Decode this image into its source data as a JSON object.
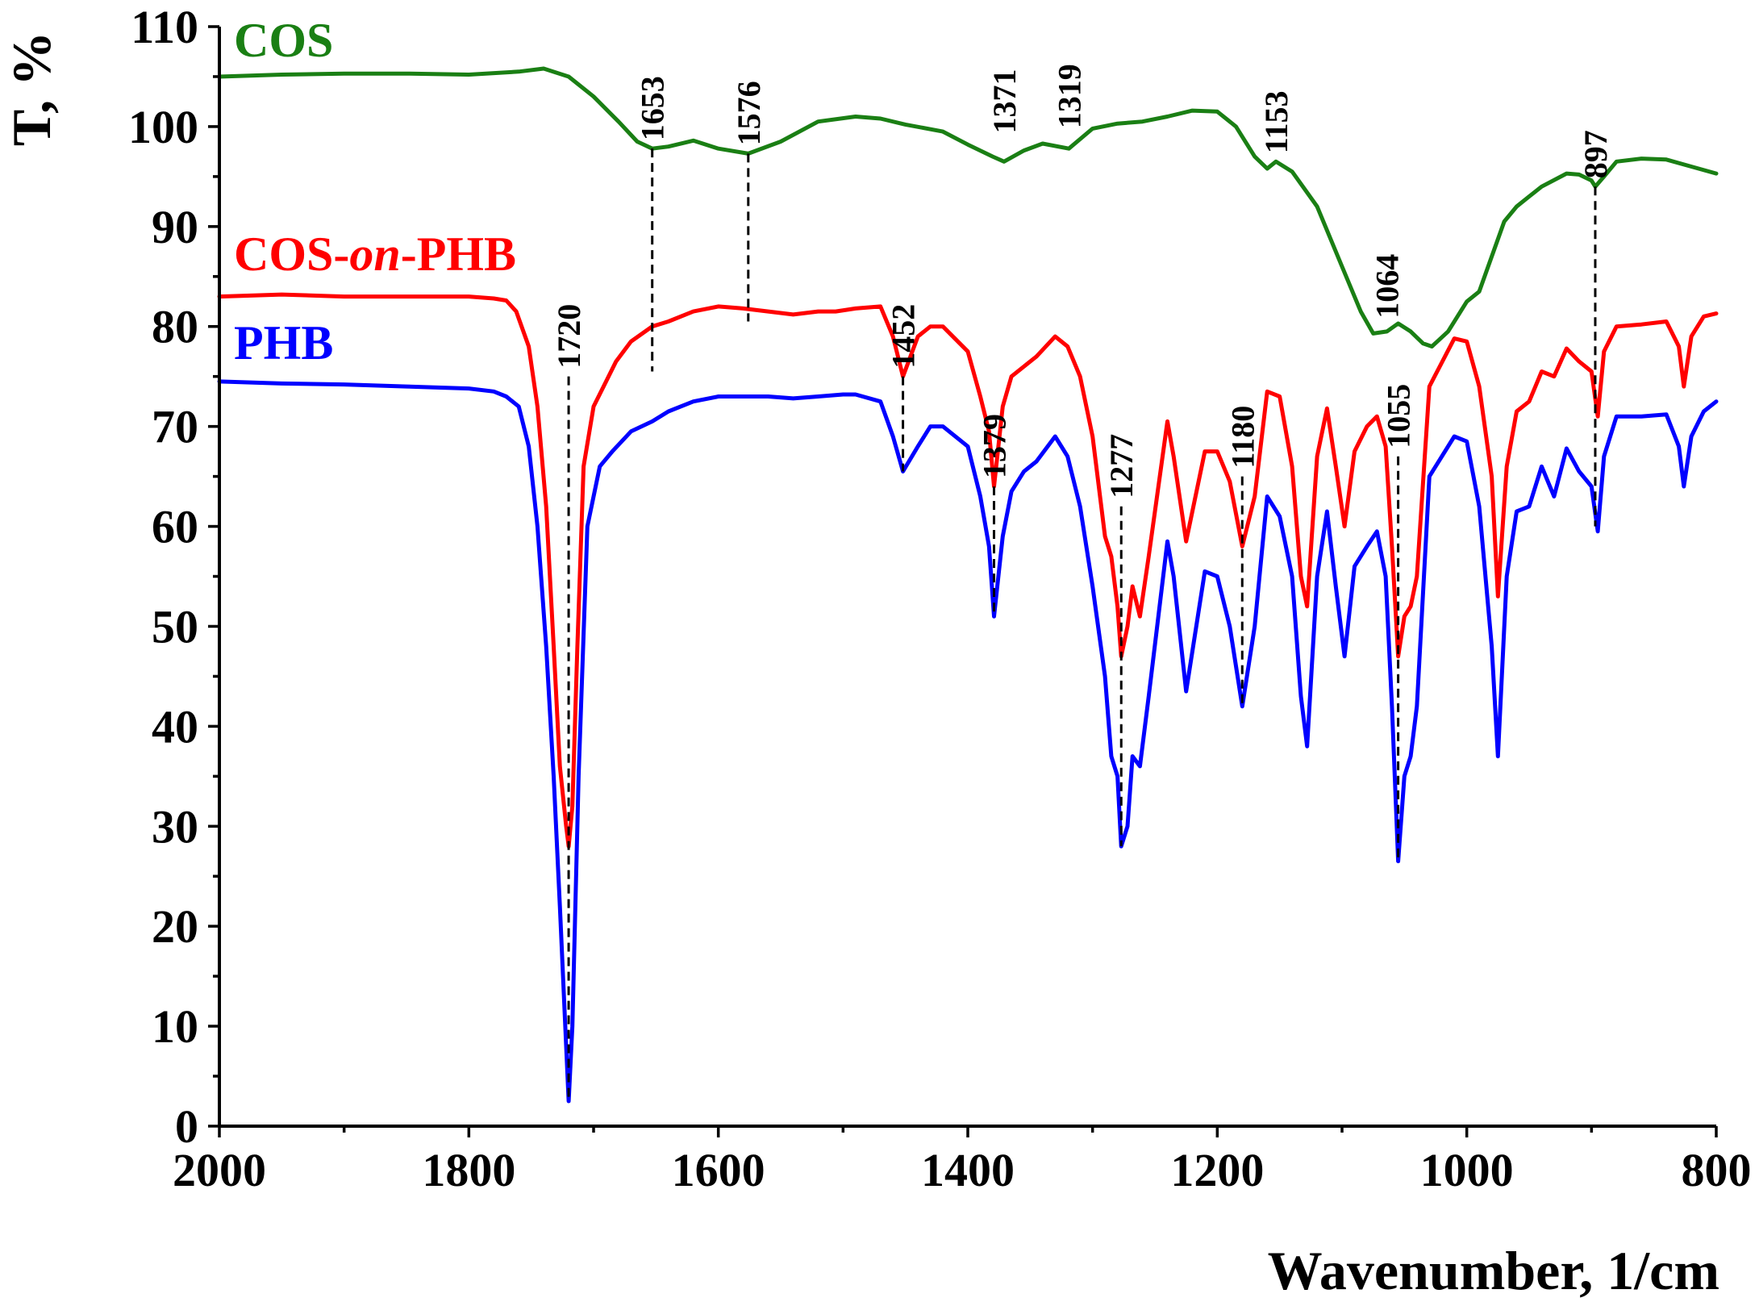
{
  "chart_data": {
    "type": "line",
    "title": "",
    "xlabel": "Wavenumber, 1/cm",
    "ylabel": "T, %",
    "xlim": [
      2000,
      800
    ],
    "ylim": [
      0,
      110
    ],
    "x_ticks": [
      2000,
      1800,
      1600,
      1400,
      1200,
      1000,
      800
    ],
    "y_ticks": [
      0,
      10,
      20,
      30,
      40,
      50,
      60,
      70,
      80,
      90,
      100,
      110
    ],
    "grid": false,
    "legend": "top-left, inline labels",
    "series": [
      {
        "name": "COS",
        "color": "#1a7f14",
        "x": [
          2000,
          1950,
          1900,
          1850,
          1800,
          1760,
          1740,
          1720,
          1700,
          1680,
          1665,
          1653,
          1640,
          1620,
          1600,
          1576,
          1550,
          1520,
          1490,
          1470,
          1450,
          1420,
          1400,
          1380,
          1371,
          1355,
          1340,
          1319,
          1300,
          1280,
          1260,
          1240,
          1220,
          1200,
          1185,
          1170,
          1160,
          1153,
          1140,
          1120,
          1100,
          1085,
          1075,
          1064,
          1055,
          1045,
          1035,
          1028,
          1015,
          1000,
          990,
          980,
          970,
          960,
          950,
          940,
          920,
          910,
          900,
          897,
          890,
          880,
          860,
          840,
          820,
          800
        ],
        "y": [
          105,
          105.2,
          105.3,
          105.3,
          105.2,
          105.5,
          105.8,
          105,
          103,
          100.5,
          98.5,
          97.8,
          98,
          98.6,
          97.8,
          97.3,
          98.5,
          100.5,
          101,
          100.8,
          100.2,
          99.5,
          98.2,
          97,
          96.5,
          97.6,
          98.3,
          97.8,
          99.8,
          100.3,
          100.5,
          101,
          101.6,
          101.5,
          100,
          97,
          95.8,
          96.5,
          95.5,
          92,
          86,
          81.5,
          79.3,
          79.5,
          80.3,
          79.5,
          78.3,
          78,
          79.5,
          82.5,
          83.5,
          87,
          90.5,
          92,
          93,
          94,
          95.3,
          95.2,
          94.6,
          94,
          95,
          96.5,
          96.8,
          96.7,
          96,
          95.3
        ]
      },
      {
        "name": "COS-on-PHB",
        "name_prefix": "COS-",
        "name_italic": "on",
        "name_suffix": "-PHB",
        "color": "#ff0000",
        "x": [
          2000,
          1950,
          1900,
          1850,
          1800,
          1780,
          1770,
          1762,
          1752,
          1745,
          1738,
          1732,
          1727,
          1722,
          1720,
          1717,
          1713,
          1708,
          1700,
          1690,
          1682,
          1670,
          1653,
          1640,
          1620,
          1600,
          1580,
          1560,
          1540,
          1520,
          1506,
          1490,
          1470,
          1460,
          1452,
          1440,
          1430,
          1420,
          1400,
          1390,
          1383,
          1379,
          1372,
          1365,
          1355,
          1345,
          1330,
          1320,
          1310,
          1300,
          1290,
          1285,
          1280,
          1277,
          1272,
          1268,
          1262,
          1255,
          1240,
          1235,
          1225,
          1210,
          1200,
          1190,
          1180,
          1170,
          1160,
          1150,
          1140,
          1133,
          1128,
          1120,
          1112,
          1105,
          1098,
          1090,
          1080,
          1072,
          1065,
          1060,
          1055,
          1050,
          1045,
          1040,
          1030,
          1010,
          1000,
          990,
          980,
          975,
          968,
          960,
          950,
          940,
          930,
          920,
          910,
          900,
          895,
          890,
          880,
          860,
          840,
          830,
          826,
          820,
          810,
          800
        ],
        "y": [
          83,
          83.2,
          83,
          83,
          83,
          82.8,
          82.6,
          81.5,
          78,
          72,
          62,
          48,
          36,
          30,
          28,
          32,
          48,
          66,
          72,
          74.5,
          76.5,
          78.5,
          80,
          80.5,
          81.5,
          82,
          81.8,
          81.5,
          81.2,
          81.5,
          81.5,
          81.8,
          82,
          79,
          75,
          79,
          80,
          80,
          77.5,
          73,
          69.5,
          64,
          72,
          75,
          76,
          77,
          79,
          78,
          75,
          69,
          59,
          57,
          52,
          47,
          50,
          54,
          51,
          57,
          70.5,
          67,
          58.5,
          67.5,
          67.5,
          64.5,
          58,
          63,
          73.5,
          73,
          66,
          55,
          52,
          67,
          71.8,
          66,
          60,
          67.5,
          70,
          71,
          68,
          58,
          47,
          51,
          52,
          55,
          74,
          78.8,
          78.5,
          74,
          65,
          53,
          66,
          71.5,
          72.5,
          75.5,
          75,
          77.8,
          76.5,
          75.5,
          71,
          77.5,
          80,
          80.2,
          80.5,
          78,
          74,
          79,
          81,
          81.3
        ]
      },
      {
        "name": "PHB",
        "color": "#0000ff",
        "x": [
          2000,
          1950,
          1900,
          1850,
          1800,
          1780,
          1770,
          1760,
          1752,
          1745,
          1738,
          1732,
          1727,
          1722,
          1720,
          1717,
          1712,
          1705,
          1695,
          1685,
          1670,
          1653,
          1640,
          1620,
          1600,
          1580,
          1560,
          1540,
          1520,
          1500,
          1490,
          1470,
          1460,
          1452,
          1440,
          1430,
          1420,
          1400,
          1390,
          1383,
          1379,
          1372,
          1365,
          1355,
          1345,
          1330,
          1320,
          1310,
          1300,
          1290,
          1285,
          1280,
          1277,
          1272,
          1268,
          1262,
          1255,
          1240,
          1235,
          1225,
          1210,
          1200,
          1190,
          1180,
          1170,
          1160,
          1150,
          1140,
          1133,
          1128,
          1120,
          1112,
          1105,
          1098,
          1090,
          1080,
          1072,
          1065,
          1060,
          1055,
          1050,
          1045,
          1040,
          1030,
          1010,
          1000,
          990,
          980,
          975,
          968,
          960,
          950,
          940,
          930,
          920,
          910,
          900,
          895,
          890,
          880,
          860,
          840,
          830,
          826,
          820,
          810,
          800
        ],
        "y": [
          74.5,
          74.3,
          74.2,
          74,
          73.8,
          73.5,
          73,
          72,
          68,
          60,
          48,
          35,
          22,
          8,
          2.5,
          10,
          35,
          60,
          66,
          67.5,
          69.5,
          70.5,
          71.5,
          72.5,
          73,
          73,
          73,
          72.8,
          73,
          73.2,
          73.2,
          72.5,
          69,
          65.5,
          68,
          70,
          70,
          68,
          63,
          58,
          51,
          59,
          63.5,
          65.5,
          66.5,
          69,
          67,
          62,
          54,
          45,
          37,
          35,
          28,
          30,
          37,
          36,
          43,
          58.5,
          55,
          43.5,
          55.5,
          55,
          50,
          42,
          50,
          63,
          61,
          55,
          43,
          38,
          55,
          61.5,
          54,
          47,
          56,
          58,
          59.5,
          55,
          42,
          26.5,
          35,
          37,
          42,
          65,
          69,
          68.5,
          62,
          48,
          37,
          55,
          61.5,
          62,
          66,
          63,
          67.8,
          65.5,
          64,
          59.5,
          67,
          71,
          71,
          71.2,
          68,
          64,
          69,
          71.5,
          72.5
        ]
      }
    ],
    "peak_annotations": [
      {
        "label": "1653",
        "x": 1653,
        "y_from": 97.8,
        "y_to": 75.5
      },
      {
        "label": "1576",
        "x": 1576,
        "y_from": 97.3,
        "y_to": 80.5
      },
      {
        "label": "1371",
        "x": 1371,
        "y_from": 98.5,
        "y_to": 98.5
      },
      {
        "label": "1319",
        "x": 1319,
        "y_from": 99,
        "y_to": 99
      },
      {
        "label": "1153",
        "x": 1153,
        "y_from": 96.5,
        "y_to": 96.5
      },
      {
        "label": "897",
        "x": 897,
        "y_from": 94,
        "y_to": 60
      },
      {
        "label": "1064",
        "x": 1064,
        "y_from": 80,
        "y_to": 80
      },
      {
        "label": "1452",
        "x": 1452,
        "y_from": 75,
        "y_to": 65.5
      },
      {
        "label": "1379",
        "x": 1379,
        "y_from": 64,
        "y_to": 51
      },
      {
        "label": "1720",
        "x": 1720,
        "y_from": 75,
        "y_to": 2.5
      },
      {
        "label": "1277",
        "x": 1277,
        "y_from": 62,
        "y_to": 28
      },
      {
        "label": "1180",
        "x": 1180,
        "y_from": 65,
        "y_to": 42
      },
      {
        "label": "1055",
        "x": 1055,
        "y_from": 67,
        "y_to": 26.5
      }
    ]
  }
}
